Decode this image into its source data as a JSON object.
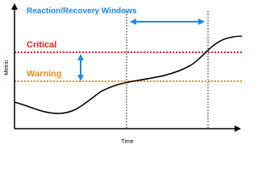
{
  "title": "Reaction/Recovery Windows",
  "thresholds": {
    "critical": "Critical",
    "warning": "Warning"
  },
  "axes": {
    "y": "Metric",
    "x": "Time"
  }
}
